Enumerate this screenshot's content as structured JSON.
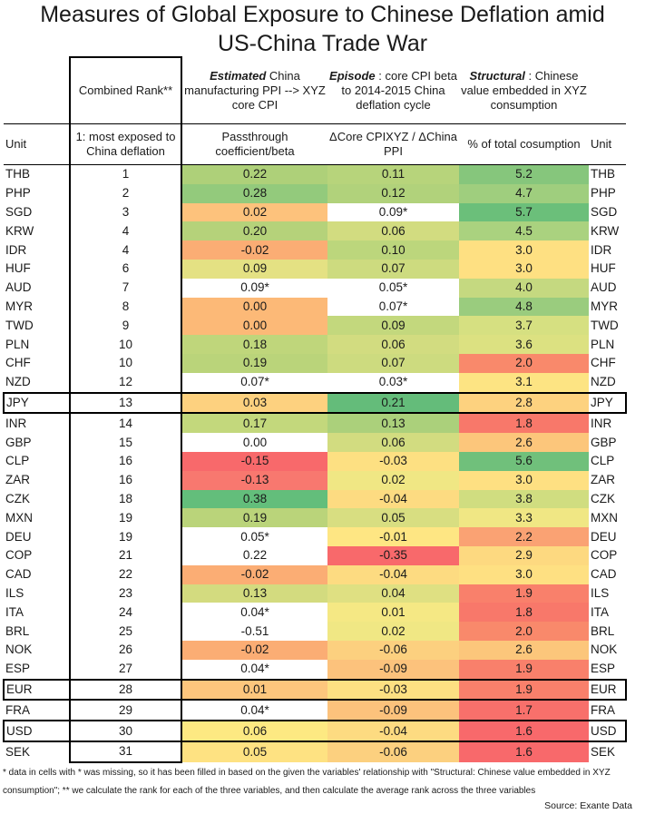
{
  "chart_data": {
    "type": "table",
    "title": "Measures of Global Exposure to Chinese Deflation amid",
    "title_line2": "US-China Trade War",
    "header_top": {
      "rank": "Combined Rank**",
      "ppi_em": "Estimated",
      "ppi_rest": " China manufacturing PPI --> XYZ core CPI",
      "episode_em": "Episode",
      "episode_rest": " : core CPI beta to 2014-2015 China deflation cycle",
      "structural_em": "Structural",
      "structural_rest": " : Chinese value embedded in XYZ consumption"
    },
    "header_sub": {
      "unit_left": "Unit",
      "rank": "1: most exposed to China deflation",
      "ppi": "Passthrough coefficient/beta",
      "episode": "ΔCore CPIXYZ / ΔChina PPI",
      "structural": "% of total cosumption",
      "unit_right": "Unit"
    },
    "rows": [
      {
        "unit": "THB",
        "rank": "1",
        "ppi": "0.22",
        "ppi_c": "#aed079",
        "epi": "0.11",
        "epi_c": "#b7d47b",
        "str": "5.2",
        "str_c": "#86c67c",
        "boxed": false
      },
      {
        "unit": "PHP",
        "rank": "2",
        "ppi": "0.28",
        "ppi_c": "#93ca7c",
        "epi": "0.12",
        "epi_c": "#b1d27b",
        "str": "4.7",
        "str_c": "#9fce7e",
        "boxed": false
      },
      {
        "unit": "SGD",
        "rank": "3",
        "ppi": "0.02",
        "ppi_c": "#fdc27c",
        "epi": "0.09*",
        "epi_c": "#ffffff",
        "str": "5.7",
        "str_c": "#6bbf7a",
        "boxed": false
      },
      {
        "unit": "KRW",
        "rank": "4",
        "ppi": "0.20",
        "ppi_c": "#b5d27a",
        "epi": "0.06",
        "epi_c": "#d2dc80",
        "str": "4.5",
        "str_c": "#aad27f",
        "boxed": false
      },
      {
        "unit": "IDR",
        "rank": "4",
        "ppi": "-0.02",
        "ppi_c": "#fbad74",
        "epi": "0.10",
        "epi_c": "#bcd67c",
        "str": "3.0",
        "str_c": "#fee082",
        "boxed": false
      },
      {
        "unit": "HUF",
        "rank": "6",
        "ppi": "0.09",
        "ppi_c": "#e4e183",
        "epi": "0.07",
        "epi_c": "#cddb7f",
        "str": "3.0",
        "str_c": "#fee082",
        "boxed": false
      },
      {
        "unit": "AUD",
        "rank": "7",
        "ppi": "0.09*",
        "ppi_c": "#ffffff",
        "epi": "0.05*",
        "epi_c": "#ffffff",
        "str": "4.0",
        "str_c": "#c5d980",
        "boxed": false
      },
      {
        "unit": "MYR",
        "rank": "8",
        "ppi": "0.00",
        "ppi_c": "#fcb977",
        "epi": "0.07*",
        "epi_c": "#ffffff",
        "str": "4.8",
        "str_c": "#9acc7e",
        "boxed": false
      },
      {
        "unit": "TWD",
        "rank": "9",
        "ppi": "0.00",
        "ppi_c": "#fcb977",
        "epi": "0.09",
        "epi_c": "#c3d87d",
        "str": "3.7",
        "str_c": "#d6e081",
        "boxed": false
      },
      {
        "unit": "PLN",
        "rank": "10",
        "ppi": "0.18",
        "ppi_c": "#bfd67b",
        "epi": "0.06",
        "epi_c": "#d2dc80",
        "str": "3.6",
        "str_c": "#dce181",
        "boxed": false
      },
      {
        "unit": "CHF",
        "rank": "10",
        "ppi": "0.19",
        "ppi_c": "#bad47a",
        "epi": "0.07",
        "epi_c": "#cddb7f",
        "str": "2.0",
        "str_c": "#f9896b",
        "boxed": false
      },
      {
        "unit": "NZD",
        "rank": "12",
        "ppi": "0.07*",
        "ppi_c": "#ffffff",
        "epi": "0.03*",
        "epi_c": "#ffffff",
        "str": "3.1",
        "str_c": "#fde483",
        "boxed": false
      },
      {
        "unit": "JPY",
        "rank": "13",
        "ppi": "0.03",
        "ppi_c": "#fdd17f",
        "epi": "0.21",
        "epi_c": "#64bc7a",
        "str": "2.8",
        "str_c": "#fdd27f",
        "boxed": true
      },
      {
        "unit": "INR",
        "rank": "14",
        "ppi": "0.17",
        "ppi_c": "#c3d87c",
        "epi": "0.13",
        "epi_c": "#abd07b",
        "str": "1.8",
        "str_c": "#f8786a",
        "boxed": false
      },
      {
        "unit": "GBP",
        "rank": "15",
        "ppi": "0.00",
        "ppi_c": "#ffffff",
        "epi": "0.06",
        "epi_c": "#d2dc80",
        "str": "2.6",
        "str_c": "#fcc67b",
        "boxed": false
      },
      {
        "unit": "CLP",
        "rank": "16",
        "ppi": "-0.15",
        "ppi_c": "#f8696b",
        "epi": "-0.03",
        "epi_c": "#fde082",
        "str": "5.6",
        "str_c": "#70c07b",
        "boxed": false
      },
      {
        "unit": "ZAR",
        "rank": "16",
        "ppi": "-0.13",
        "ppi_c": "#f8786f",
        "epi": "0.02",
        "epi_c": "#f0e784",
        "str": "3.0",
        "str_c": "#fee082",
        "boxed": false
      },
      {
        "unit": "CZK",
        "rank": "18",
        "ppi": "0.38",
        "ppi_c": "#63be7b",
        "epi": "-0.04",
        "epi_c": "#fddb81",
        "str": "3.8",
        "str_c": "#d0dd80",
        "boxed": false
      },
      {
        "unit": "MXN",
        "rank": "19",
        "ppi": "0.19",
        "ppi_c": "#bad47a",
        "epi": "0.05",
        "epi_c": "#d8de81",
        "str": "3.3",
        "str_c": "#f0e784",
        "boxed": false
      },
      {
        "unit": "DEU",
        "rank": "19",
        "ppi": "0.05*",
        "ppi_c": "#ffffff",
        "epi": "-0.01",
        "epi_c": "#fee683",
        "str": "2.2",
        "str_c": "#faa273",
        "boxed": false
      },
      {
        "unit": "COP",
        "rank": "21",
        "ppi": "0.22",
        "ppi_c": "#ffffff",
        "epi": "-0.35",
        "epi_c": "#f8696b",
        "str": "2.9",
        "str_c": "#fdd980",
        "boxed": false
      },
      {
        "unit": "CAD",
        "rank": "22",
        "ppi": "-0.02",
        "ppi_c": "#fbad74",
        "epi": "-0.04",
        "epi_c": "#fddb81",
        "str": "3.0",
        "str_c": "#fee082",
        "boxed": false
      },
      {
        "unit": "ILS",
        "rank": "23",
        "ppi": "0.13",
        "ppi_c": "#d3db7f",
        "epi": "0.04",
        "epi_c": "#dfe082",
        "str": "1.9",
        "str_c": "#f9806b",
        "boxed": false
      },
      {
        "unit": "ITA",
        "rank": "24",
        "ppi": "0.04*",
        "ppi_c": "#ffffff",
        "epi": "0.01",
        "epi_c": "#f5e884",
        "str": "1.8",
        "str_c": "#f8786a",
        "boxed": false
      },
      {
        "unit": "BRL",
        "rank": "25",
        "ppi": "-0.51",
        "ppi_c": "#ffffff",
        "epi": "0.02",
        "epi_c": "#f0e784",
        "str": "2.0",
        "str_c": "#f9896b",
        "boxed": false
      },
      {
        "unit": "NOK",
        "rank": "26",
        "ppi": "-0.02",
        "ppi_c": "#fbad74",
        "epi": "-0.06",
        "epi_c": "#fcd07f",
        "str": "2.6",
        "str_c": "#fcc67b",
        "boxed": false
      },
      {
        "unit": "ESP",
        "rank": "27",
        "ppi": "0.04*",
        "ppi_c": "#ffffff",
        "epi": "-0.09",
        "epi_c": "#fcc27c",
        "str": "1.9",
        "str_c": "#f9806b",
        "boxed": false
      },
      {
        "unit": "EUR",
        "rank": "28",
        "ppi": "0.01",
        "ppi_c": "#fdc67d",
        "epi": "-0.03",
        "epi_c": "#fde082",
        "str": "1.9",
        "str_c": "#f9806b",
        "boxed": true
      },
      {
        "unit": "FRA",
        "rank": "29",
        "ppi": "0.04*",
        "ppi_c": "#ffffff",
        "epi": "-0.09",
        "epi_c": "#fcc27c",
        "str": "1.7",
        "str_c": "#f8706b",
        "boxed": false
      },
      {
        "unit": "USD",
        "rank": "30",
        "ppi": "0.06",
        "ppi_c": "#fde982",
        "epi": "-0.04",
        "epi_c": "#fddb81",
        "str": "1.6",
        "str_c": "#f8696b",
        "boxed": true
      },
      {
        "unit": "SEK",
        "rank": "31",
        "ppi": "0.05",
        "ppi_c": "#fee282",
        "epi": "-0.06",
        "epi_c": "#fcd07f",
        "str": "1.6",
        "str_c": "#f8696b",
        "boxed": false
      }
    ]
  },
  "footnote": "* data in cells with * was missing, so it has been filled in based on the given the variables' relationship with \"Structural: Chinese value embedded in XYZ consumption\"; ** we calculate the rank for each of the three variables, and then calculate the average rank across the three variables",
  "source": "Source: Exante Data"
}
